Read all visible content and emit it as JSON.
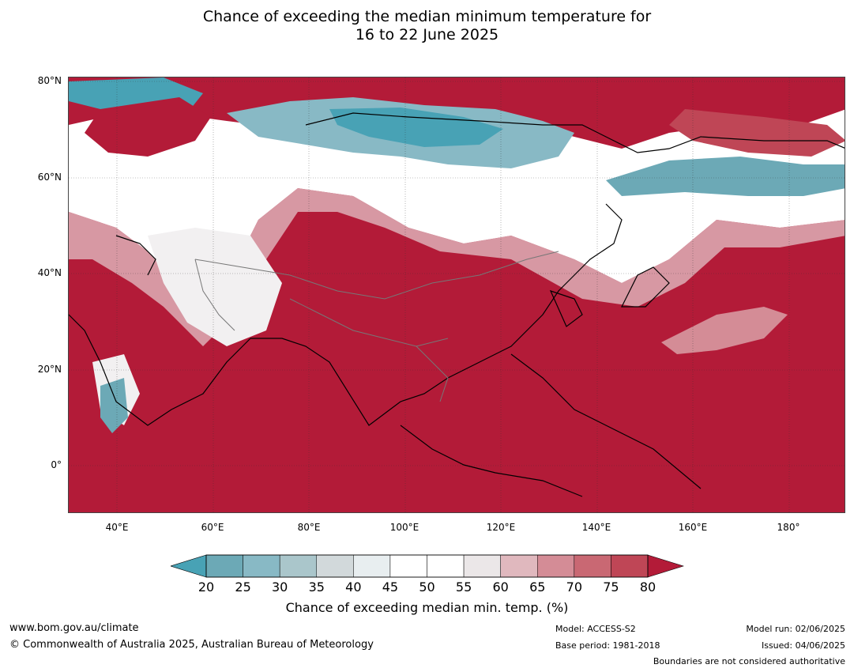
{
  "title": {
    "line1": "Chance of exceeding the median minimum temperature for",
    "line2": "16 to 22 June 2025"
  },
  "map": {
    "lat_labels": [
      "80°N",
      "60°N",
      "40°N",
      "20°N",
      "0°"
    ],
    "lon_labels": [
      "40°E",
      "60°E",
      "80°E",
      "100°E",
      "120°E",
      "140°E",
      "160°E",
      "180°"
    ],
    "extent": {
      "lon_min": 30,
      "lon_max": 192,
      "lat_min": -10,
      "lat_max": 81
    }
  },
  "colorbar": {
    "ticks": [
      "20",
      "25",
      "30",
      "35",
      "40",
      "45",
      "50",
      "55",
      "60",
      "65",
      "70",
      "75",
      "80"
    ],
    "colors": [
      "#6ca9b6",
      "#88b9c5",
      "#aac6cb",
      "#d2d9db",
      "#e8eef0",
      "#ffffff",
      "#ffffff",
      "#ebe7e8",
      "#e0b8be",
      "#d48c96",
      "#c96873",
      "#bf4656"
    ],
    "low_color": "#48a2b5",
    "high_color": "#b31b38",
    "label": "Chance of exceeding median min. temp. (%)"
  },
  "footer": {
    "url": "www.bom.gov.au/climate",
    "copyright": "© Commonwealth of Australia 2025, Australian Bureau of Meteorology",
    "model": "Model: ACCESS-S2",
    "base_period": "Base period: 1981-2018",
    "model_run": "Model run: 02/06/2025",
    "issued": "Issued: 04/06/2025",
    "disclaimer": "Boundaries are not considered authoritative"
  }
}
